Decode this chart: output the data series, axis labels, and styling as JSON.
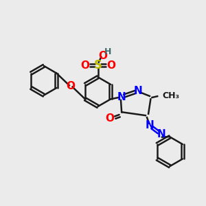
{
  "bg_color": "#ebebeb",
  "atom_colors": {
    "N": "#0000ff",
    "O": "#ff0000",
    "S": "#bbbb00",
    "H": "#3a6a6a",
    "C": "#1a1a1a"
  },
  "line_color": "#1a1a1a",
  "line_width": 1.8,
  "font_size": 11,
  "fig_width": 3.0,
  "fig_height": 3.0,
  "dpi": 100
}
